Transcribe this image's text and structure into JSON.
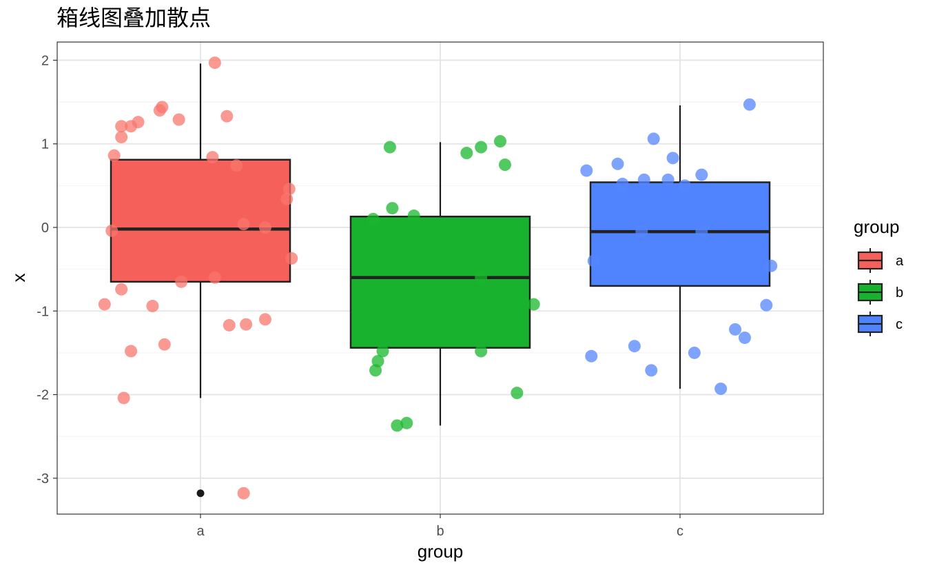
{
  "chart_data": {
    "type": "box",
    "title": "箱线图叠加散点",
    "xlabel": "group",
    "ylabel": "x",
    "categories": [
      "a",
      "b",
      "c"
    ],
    "y_ticks": [
      2,
      1,
      0,
      -1,
      -2,
      -3
    ],
    "ylim": [
      -3.4,
      2.2
    ],
    "grid": true,
    "legend": {
      "title": "group",
      "position": "right",
      "entries": [
        "a",
        "b",
        "c"
      ]
    },
    "colors": {
      "a": "#f8766d",
      "b": "#19b72e",
      "c": "#5385ff",
      "box_a": "#f5605a",
      "box_b": "#19b22e",
      "box_c": "#5084ff"
    },
    "boxes": [
      {
        "group": "a",
        "q1": -0.65,
        "median": -0.02,
        "q3": 0.81,
        "whisker_low": -2.04,
        "whisker_high": 1.96,
        "outliers": [
          -3.18
        ]
      },
      {
        "group": "b",
        "q1": -1.44,
        "median": -0.6,
        "q3": 0.13,
        "whisker_low": -2.37,
        "whisker_high": 1.02,
        "outliers": []
      },
      {
        "group": "c",
        "q1": -0.7,
        "median": -0.05,
        "q3": 0.54,
        "whisker_low": -1.93,
        "whisker_high": 1.46,
        "outliers": []
      }
    ],
    "points": [
      {
        "group": "a",
        "offset": 0.06,
        "y": 1.97
      },
      {
        "group": "a",
        "offset": -0.16,
        "y": 1.44
      },
      {
        "group": "a",
        "offset": -0.17,
        "y": 1.4
      },
      {
        "group": "a",
        "offset": -0.09,
        "y": 1.29
      },
      {
        "group": "a",
        "offset": 0.11,
        "y": 1.33
      },
      {
        "group": "a",
        "offset": -0.26,
        "y": 1.26
      },
      {
        "group": "a",
        "offset": -0.29,
        "y": 1.21
      },
      {
        "group": "a",
        "offset": -0.33,
        "y": 1.21
      },
      {
        "group": "a",
        "offset": -0.33,
        "y": 1.08
      },
      {
        "group": "a",
        "offset": -0.36,
        "y": 0.86
      },
      {
        "group": "a",
        "offset": 0.05,
        "y": 0.84
      },
      {
        "group": "a",
        "offset": 0.15,
        "y": 0.74
      },
      {
        "group": "a",
        "offset": 0.37,
        "y": 0.46
      },
      {
        "group": "a",
        "offset": 0.36,
        "y": 0.34
      },
      {
        "group": "a",
        "offset": 0.18,
        "y": 0.04
      },
      {
        "group": "a",
        "offset": 0.27,
        "y": 0.0
      },
      {
        "group": "a",
        "offset": -0.37,
        "y": -0.04
      },
      {
        "group": "a",
        "offset": 0.38,
        "y": -0.37
      },
      {
        "group": "a",
        "offset": 0.06,
        "y": -0.6
      },
      {
        "group": "a",
        "offset": -0.08,
        "y": -0.65
      },
      {
        "group": "a",
        "offset": -0.33,
        "y": -0.74
      },
      {
        "group": "a",
        "offset": -0.4,
        "y": -0.92
      },
      {
        "group": "a",
        "offset": -0.2,
        "y": -0.94
      },
      {
        "group": "a",
        "offset": 0.27,
        "y": -1.1
      },
      {
        "group": "a",
        "offset": 0.12,
        "y": -1.17
      },
      {
        "group": "a",
        "offset": 0.19,
        "y": -1.16
      },
      {
        "group": "a",
        "offset": -0.15,
        "y": -1.4
      },
      {
        "group": "a",
        "offset": -0.29,
        "y": -1.48
      },
      {
        "group": "a",
        "offset": -0.32,
        "y": -2.04
      },
      {
        "group": "a",
        "offset": 0.18,
        "y": -3.18
      },
      {
        "group": "b",
        "offset": -0.21,
        "y": 0.96
      },
      {
        "group": "b",
        "offset": 0.25,
        "y": 1.03
      },
      {
        "group": "b",
        "offset": 0.17,
        "y": 0.96
      },
      {
        "group": "b",
        "offset": 0.11,
        "y": 0.89
      },
      {
        "group": "b",
        "offset": 0.27,
        "y": 0.75
      },
      {
        "group": "b",
        "offset": -0.2,
        "y": 0.23
      },
      {
        "group": "b",
        "offset": -0.11,
        "y": 0.14
      },
      {
        "group": "b",
        "offset": -0.28,
        "y": 0.1
      },
      {
        "group": "b",
        "offset": 0.17,
        "y": -0.6
      },
      {
        "group": "b",
        "offset": 0.39,
        "y": -0.92
      },
      {
        "group": "b",
        "offset": 0.17,
        "y": -1.48
      },
      {
        "group": "b",
        "offset": -0.24,
        "y": -1.48
      },
      {
        "group": "b",
        "offset": -0.26,
        "y": -1.6
      },
      {
        "group": "b",
        "offset": -0.27,
        "y": -1.71
      },
      {
        "group": "b",
        "offset": 0.32,
        "y": -1.98
      },
      {
        "group": "b",
        "offset": -0.14,
        "y": -2.34
      },
      {
        "group": "b",
        "offset": -0.18,
        "y": -2.37
      },
      {
        "group": "c",
        "offset": 0.29,
        "y": 1.47
      },
      {
        "group": "c",
        "offset": -0.11,
        "y": 1.06
      },
      {
        "group": "c",
        "offset": -0.03,
        "y": 0.83
      },
      {
        "group": "c",
        "offset": -0.26,
        "y": 0.76
      },
      {
        "group": "c",
        "offset": -0.39,
        "y": 0.68
      },
      {
        "group": "c",
        "offset": 0.09,
        "y": 0.63
      },
      {
        "group": "c",
        "offset": -0.15,
        "y": 0.57
      },
      {
        "group": "c",
        "offset": -0.05,
        "y": 0.57
      },
      {
        "group": "c",
        "offset": -0.24,
        "y": 0.52
      },
      {
        "group": "c",
        "offset": 0.02,
        "y": 0.5
      },
      {
        "group": "c",
        "offset": -0.16,
        "y": -0.05
      },
      {
        "group": "c",
        "offset": 0.09,
        "y": -0.05
      },
      {
        "group": "c",
        "offset": -0.36,
        "y": -0.4
      },
      {
        "group": "c",
        "offset": 0.38,
        "y": -0.46
      },
      {
        "group": "c",
        "offset": 0.36,
        "y": -0.93
      },
      {
        "group": "c",
        "offset": 0.23,
        "y": -1.22
      },
      {
        "group": "c",
        "offset": 0.27,
        "y": -1.32
      },
      {
        "group": "c",
        "offset": -0.19,
        "y": -1.42
      },
      {
        "group": "c",
        "offset": 0.06,
        "y": -1.5
      },
      {
        "group": "c",
        "offset": -0.37,
        "y": -1.54
      },
      {
        "group": "c",
        "offset": -0.12,
        "y": -1.71
      },
      {
        "group": "c",
        "offset": 0.17,
        "y": -1.93
      }
    ]
  }
}
